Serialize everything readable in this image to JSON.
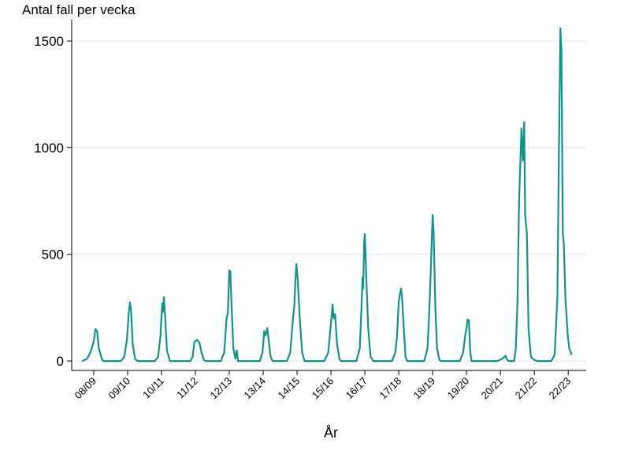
{
  "chart_data": {
    "type": "line",
    "ylabel": "Antal fall per vecka",
    "xlabel": "År",
    "color": "#13928a",
    "grid": true,
    "xlim": [
      -0.65,
      14.53
    ],
    "ylim": [
      -44,
      1600
    ],
    "yticks": [
      0,
      500,
      1000,
      1500
    ],
    "xticks": [
      {
        "value": 0,
        "label": "08/09"
      },
      {
        "value": 1,
        "label": "09/10"
      },
      {
        "value": 2,
        "label": "10/11"
      },
      {
        "value": 3,
        "label": "11/12"
      },
      {
        "value": 4,
        "label": "12/13"
      },
      {
        "value": 5,
        "label": "13/14"
      },
      {
        "value": 6,
        "label": "14/15"
      },
      {
        "value": 7,
        "label": "15/16"
      },
      {
        "value": 8,
        "label": "16/17"
      },
      {
        "value": 9,
        "label": "17/18"
      },
      {
        "value": 10,
        "label": "18/19"
      },
      {
        "value": 11,
        "label": "19/20"
      },
      {
        "value": 12,
        "label": "20/21"
      },
      {
        "value": 13,
        "label": "21/22"
      },
      {
        "value": 14,
        "label": "22/23"
      }
    ],
    "x": [
      -0.35,
      -0.2,
      -0.1,
      0.0,
      0.05,
      0.1,
      0.15,
      0.25,
      0.3,
      0.8,
      0.9,
      0.98,
      1.03,
      1.07,
      1.1,
      1.15,
      1.22,
      1.3,
      1.8,
      1.9,
      1.97,
      2.02,
      2.04,
      2.07,
      2.11,
      2.16,
      2.25,
      2.85,
      2.92,
      2.97,
      3.05,
      3.12,
      3.18,
      3.25,
      3.3,
      3.75,
      3.85,
      3.92,
      3.96,
      4.0,
      4.03,
      4.07,
      4.12,
      4.18,
      4.22,
      4.26,
      4.9,
      4.98,
      5.03,
      5.07,
      5.12,
      5.16,
      5.22,
      5.28,
      5.7,
      5.8,
      5.88,
      5.92,
      5.95,
      5.98,
      6.02,
      6.08,
      6.15,
      6.22,
      6.8,
      6.92,
      7.0,
      7.05,
      7.08,
      7.12,
      7.18,
      7.25,
      7.3,
      7.75,
      7.85,
      7.9,
      7.93,
      7.95,
      7.98,
      8.0,
      8.04,
      8.1,
      8.17,
      8.25,
      8.8,
      8.9,
      8.95,
      9.0,
      9.03,
      9.07,
      9.1,
      9.15,
      9.2,
      9.25,
      9.75,
      9.85,
      9.9,
      9.95,
      10.0,
      10.03,
      10.08,
      10.13,
      10.2,
      10.25,
      10.8,
      10.9,
      10.96,
      11.0,
      11.03,
      11.07,
      11.11,
      11.15,
      11.9,
      12.05,
      12.15,
      12.2,
      12.25,
      12.4,
      12.45,
      12.5,
      12.55,
      12.62,
      12.66,
      12.7,
      12.73,
      12.78,
      12.83,
      12.9,
      13.0,
      13.1,
      13.5,
      13.6,
      13.68,
      13.72,
      13.77,
      13.8,
      13.84,
      13.87,
      13.92,
      13.95,
      13.98,
      14.03,
      14.1
    ],
    "values": [
      0,
      10,
      40,
      90,
      150,
      140,
      60,
      5,
      0,
      0,
      20,
      100,
      220,
      275,
      240,
      80,
      10,
      0,
      0,
      20,
      120,
      270,
      230,
      300,
      200,
      50,
      0,
      0,
      20,
      90,
      100,
      85,
      40,
      5,
      0,
      0,
      40,
      200,
      230,
      425,
      420,
      250,
      60,
      10,
      50,
      0,
      0,
      40,
      140,
      120,
      155,
      100,
      20,
      0,
      0,
      40,
      200,
      260,
      380,
      455,
      380,
      200,
      40,
      0,
      0,
      40,
      180,
      265,
      200,
      220,
      80,
      10,
      0,
      0,
      60,
      250,
      390,
      340,
      560,
      595,
      400,
      150,
      20,
      0,
      0,
      40,
      120,
      280,
      310,
      340,
      290,
      150,
      20,
      0,
      0,
      60,
      230,
      450,
      685,
      600,
      250,
      60,
      5,
      0,
      0,
      40,
      120,
      150,
      195,
      190,
      40,
      0,
      0,
      10,
      25,
      5,
      0,
      0,
      50,
      260,
      750,
      1090,
      940,
      1120,
      680,
      600,
      150,
      20,
      5,
      0,
      0,
      30,
      300,
      900,
      1560,
      1450,
      600,
      550,
      280,
      220,
      130,
      60,
      30
    ]
  }
}
